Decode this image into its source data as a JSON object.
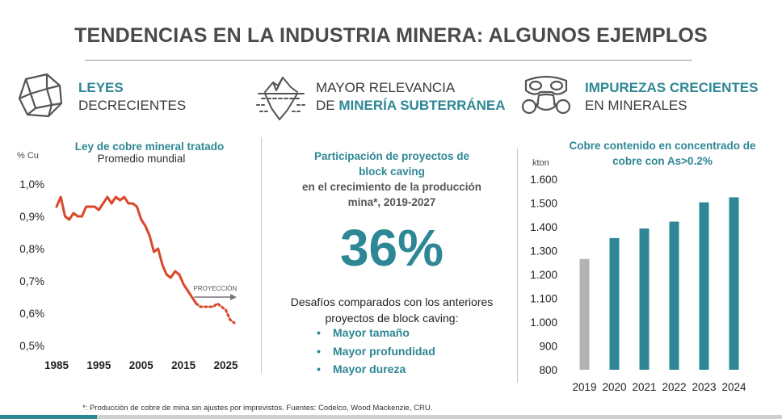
{
  "page": {
    "title": "TENDENCIAS EN LA INDUSTRIA MINERA: ALGUNOS EJEMPLOS"
  },
  "headers": [
    {
      "line1": "LEYES",
      "line2": "DECRECIENTES",
      "icon": "rock-icon"
    },
    {
      "line1": "MAYOR RELEVANCIA",
      "line2_prefix": "DE ",
      "line2_bold": "MINERÍA SUBTERRÁNEA",
      "icon": "iceberg-icon"
    },
    {
      "line1": "IMPUREZAS CRECIENTES",
      "line2": "EN MINERALES",
      "icon": "gas-mask-icon"
    }
  ],
  "middle": {
    "title_line1": "Participación de proyectos de",
    "title_line2": "block caving",
    "sub_line1": "en el crecimiento de la producción",
    "sub_line2": "mina*, 2019-2027",
    "big_value": "36%",
    "desafio_line1": "Desafíos comparados con los anteriores",
    "desafio_line2": "proyectos de block caving:",
    "bullets": [
      "Mayor tamaño",
      "Mayor profundidad",
      "Mayor dureza"
    ]
  },
  "footnote": "*: Producción de cobre de mina sin ajustes por imprevistos. Fuentes: Codelco, Wood Mackenzie, CRU.",
  "colors": {
    "teal": "#2e8794",
    "orange": "#d9482b",
    "gray_bar": "#b3b3b5"
  },
  "chart_data": [
    {
      "type": "line",
      "title": "Ley de cobre mineral tratado",
      "subtitle": "Promedio mundial",
      "ylabel": "% Cu",
      "ylim": [
        0.5,
        1.0
      ],
      "yticks": [
        "1,0%",
        "0,9%",
        "0,8%",
        "0,7%",
        "0,6%",
        "0,5%"
      ],
      "ytick_values": [
        1.0,
        0.9,
        0.8,
        0.7,
        0.6,
        0.5
      ],
      "xlim": [
        1985,
        2027
      ],
      "xticks": [
        "1985",
        "1995",
        "2005",
        "2015",
        "2025"
      ],
      "xtick_values": [
        1985,
        1995,
        2005,
        2015,
        2025
      ],
      "annotation": "PROYECCIÓN",
      "series": [
        {
          "style": "solid",
          "x": [
            1985,
            1986,
            1987,
            1988,
            1989,
            1990,
            1991,
            1992,
            1993,
            1994,
            1995,
            1996,
            1997,
            1998,
            1999,
            2000,
            2001,
            2002,
            2003,
            2004,
            2005,
            2006,
            2007,
            2008,
            2009,
            2010,
            2011,
            2012,
            2013,
            2014,
            2015,
            2016,
            2017,
            2018
          ],
          "y": [
            0.93,
            0.96,
            0.9,
            0.89,
            0.91,
            0.9,
            0.9,
            0.93,
            0.93,
            0.93,
            0.92,
            0.94,
            0.96,
            0.94,
            0.96,
            0.95,
            0.96,
            0.94,
            0.94,
            0.93,
            0.89,
            0.87,
            0.84,
            0.79,
            0.8,
            0.75,
            0.72,
            0.71,
            0.73,
            0.72,
            0.69,
            0.67,
            0.65,
            0.63
          ]
        },
        {
          "style": "dotted",
          "x": [
            2018,
            2019,
            2020,
            2021,
            2022,
            2023,
            2024,
            2025,
            2026,
            2027
          ],
          "y": [
            0.63,
            0.62,
            0.62,
            0.62,
            0.62,
            0.63,
            0.62,
            0.61,
            0.58,
            0.57
          ]
        }
      ]
    },
    {
      "type": "bar",
      "title": "Cobre contenido en concentrado de cobre con As>0.2%",
      "ylabel": "kton",
      "ylim": [
        800,
        1600
      ],
      "yticks": [
        "1.600",
        "1.500",
        "1.400",
        "1.300",
        "1.200",
        "1.100",
        "1.000",
        "900",
        "800"
      ],
      "ytick_values": [
        1600,
        1500,
        1400,
        1300,
        1200,
        1100,
        1000,
        900,
        800
      ],
      "categories": [
        "2019",
        "2020",
        "2021",
        "2022",
        "2023",
        "2024"
      ],
      "values": [
        1265,
        1353,
        1393,
        1422,
        1503,
        1524
      ],
      "bar_colors": [
        "#b3b3b5",
        "#2e8794",
        "#2e8794",
        "#2e8794",
        "#2e8794",
        "#2e8794"
      ]
    }
  ]
}
